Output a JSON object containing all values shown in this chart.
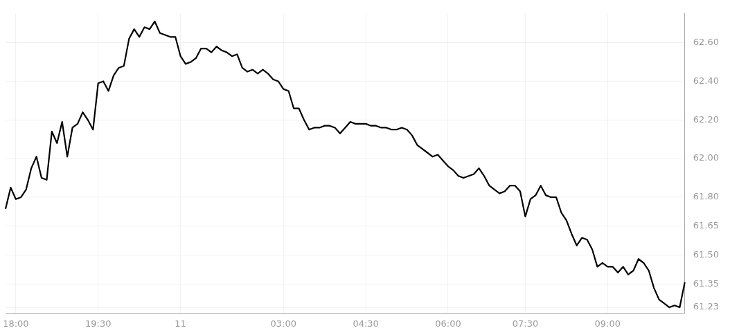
{
  "chart_data": {
    "type": "line",
    "categories": [
      null,
      null,
      "18:00",
      null,
      null,
      null,
      null,
      null,
      null,
      null,
      null,
      null,
      null,
      null,
      null,
      null,
      null,
      null,
      "19:30",
      null,
      null,
      null,
      null,
      null,
      null,
      null,
      null,
      null,
      null,
      null,
      null,
      null,
      null,
      null,
      "11",
      null,
      null,
      null,
      null,
      null,
      null,
      null,
      null,
      null,
      null,
      null,
      null,
      null,
      null,
      null,
      null,
      null,
      null,
      null,
      "03:00",
      null,
      null,
      null,
      null,
      null,
      null,
      null,
      null,
      null,
      null,
      null,
      null,
      null,
      null,
      null,
      "04:30",
      null,
      null,
      null,
      null,
      null,
      null,
      null,
      null,
      null,
      null,
      null,
      null,
      null,
      null,
      null,
      "06:00",
      null,
      null,
      null,
      null,
      null,
      null,
      null,
      null,
      null,
      null,
      null,
      null,
      null,
      null,
      "07:30",
      null,
      null,
      null,
      null,
      null,
      null,
      null,
      null,
      null,
      null,
      null,
      null,
      null,
      null,
      null,
      "09:00",
      null,
      null,
      null,
      null,
      null,
      null,
      null,
      null,
      null,
      null,
      null,
      null,
      null,
      null,
      null
    ],
    "series": [
      {
        "color": "#000000",
        "values": [
          61.74,
          61.85,
          61.79,
          61.8,
          61.84,
          61.95,
          62.01,
          61.9,
          61.89,
          62.14,
          62.08,
          62.19,
          62.01,
          62.16,
          62.18,
          62.24,
          62.2,
          62.15,
          62.39,
          62.4,
          62.35,
          62.43,
          62.47,
          62.48,
          62.62,
          62.67,
          62.63,
          62.68,
          62.67,
          62.71,
          62.65,
          62.64,
          62.63,
          62.63,
          62.53,
          62.49,
          62.5,
          62.52,
          62.57,
          62.57,
          62.55,
          62.58,
          62.56,
          62.55,
          62.53,
          62.54,
          62.47,
          62.45,
          62.46,
          62.44,
          62.46,
          62.44,
          62.41,
          62.4,
          62.36,
          62.35,
          62.26,
          62.26,
          62.2,
          62.15,
          62.16,
          62.16,
          62.17,
          62.17,
          62.16,
          62.13,
          62.16,
          62.19,
          62.18,
          62.18,
          62.18,
          62.17,
          62.17,
          62.16,
          62.16,
          62.15,
          62.15,
          62.16,
          62.15,
          62.12,
          62.07,
          62.05,
          62.03,
          62.01,
          62.02,
          61.99,
          61.96,
          61.94,
          61.91,
          61.9,
          61.91,
          61.92,
          61.95,
          61.91,
          61.86,
          61.84,
          61.82,
          61.83,
          61.86,
          61.86,
          61.83,
          61.7,
          61.79,
          61.81,
          61.86,
          61.81,
          61.8,
          61.8,
          61.72,
          61.68,
          61.61,
          61.55,
          61.59,
          61.58,
          61.53,
          61.44,
          61.46,
          61.44,
          61.44,
          61.41,
          61.44,
          61.4,
          61.42,
          61.48,
          61.46,
          61.42,
          61.33,
          61.27,
          61.25,
          61.23,
          61.24,
          61.23,
          61.36
        ]
      }
    ],
    "ylim": [
      61.2,
      62.75
    ],
    "yticks": [
      {
        "value": 61.23,
        "label": "61.23"
      },
      {
        "value": 61.35,
        "label": "61.35"
      },
      {
        "value": 61.5,
        "label": "61.50"
      },
      {
        "value": 61.65,
        "label": "61.65"
      },
      {
        "value": 61.8,
        "label": "61.80"
      },
      {
        "value": 62,
        "label": "62.00"
      },
      {
        "value": 62.2,
        "label": "62.20"
      },
      {
        "value": 62.4,
        "label": "62.40"
      },
      {
        "value": 62.6,
        "label": "62.60"
      }
    ],
    "grid": true,
    "marker": "none",
    "line_style": "solid"
  }
}
